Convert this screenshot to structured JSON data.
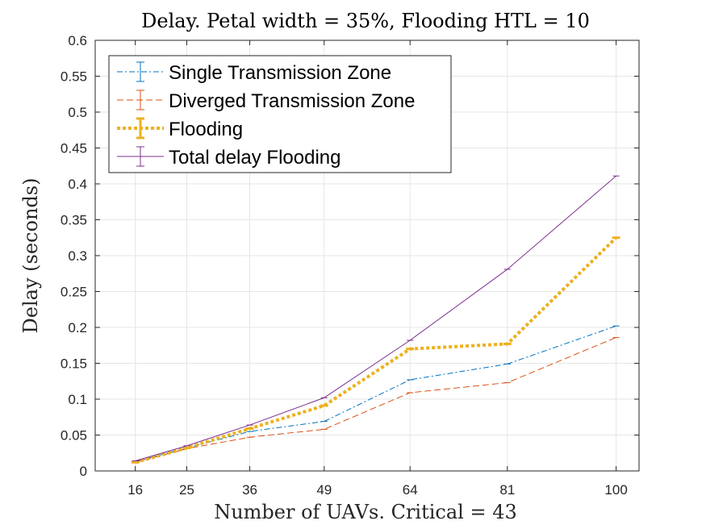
{
  "chart_data": {
    "type": "line",
    "title": "Delay. Petal width = 35%, Flooding HTL = 10",
    "xlabel": "Number of UAVs. Critical = 43",
    "ylabel": "Delay (seconds)",
    "x": [
      16,
      25,
      36,
      49,
      64,
      81,
      100
    ],
    "xticks": [
      "16",
      "25",
      "36",
      "49",
      "64",
      "81",
      "100"
    ],
    "xlim": [
      9,
      104
    ],
    "yticks": [
      "0",
      "0.05",
      "0.1",
      "0.15",
      "0.2",
      "0.25",
      "0.3",
      "0.35",
      "0.4",
      "0.45",
      "0.5",
      "0.55",
      "0.6"
    ],
    "ylim": [
      0,
      0.6
    ],
    "grid": true,
    "legend_position": "top-left",
    "series": [
      {
        "name": "Single Transmission Zone",
        "color": "#0072BD",
        "style": "dash-dot",
        "values": [
          0.013,
          0.032,
          0.055,
          0.069,
          0.127,
          0.149,
          0.202
        ]
      },
      {
        "name": "Diverged Transmission Zone",
        "color": "#D95319",
        "style": "dashed",
        "values": [
          0.012,
          0.031,
          0.047,
          0.058,
          0.109,
          0.123,
          0.186
        ]
      },
      {
        "name": "Flooding",
        "color": "#EDB120",
        "style": "dotted-thick",
        "values": [
          0.012,
          0.032,
          0.059,
          0.091,
          0.17,
          0.177,
          0.325
        ]
      },
      {
        "name": "Total delay Flooding",
        "color": "#7E2F8E",
        "style": "solid",
        "values": [
          0.014,
          0.035,
          0.064,
          0.102,
          0.182,
          0.281,
          0.411
        ]
      }
    ]
  }
}
